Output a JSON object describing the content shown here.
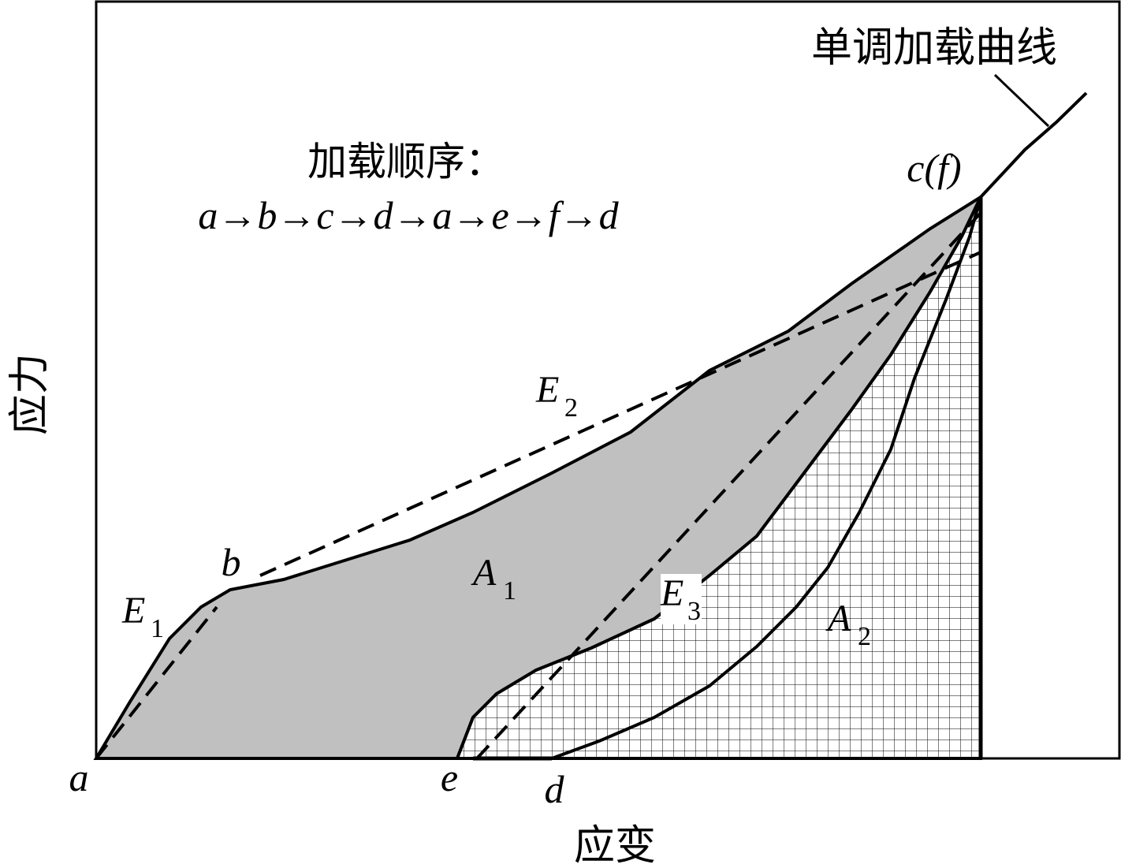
{
  "annotation": "单调加载曲线",
  "sequence": {
    "title": "加载顺序：",
    "text": "a→b→c→d→a→e→f→d"
  },
  "points": {
    "a": "a",
    "b": "b",
    "c": "c(f)",
    "d": "d",
    "e": "e"
  },
  "labels": {
    "E1": {
      "letter": "E",
      "sub": "1"
    },
    "E2": {
      "letter": "E",
      "sub": "2"
    },
    "E3": {
      "letter": "E",
      "sub": "3"
    },
    "A1": {
      "letter": "A",
      "sub": "1"
    },
    "A2": {
      "letter": "A",
      "sub": "2"
    }
  },
  "axes": {
    "x": "应变",
    "y": "应力"
  }
}
